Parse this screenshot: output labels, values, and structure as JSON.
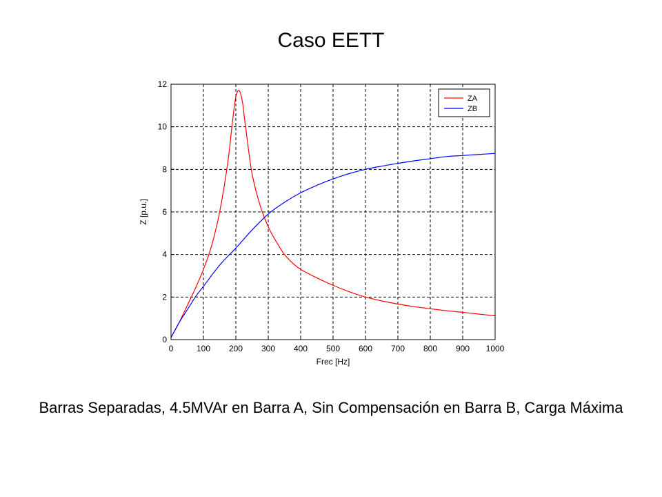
{
  "slide": {
    "title": "Caso EETT",
    "caption": "Barras Separadas, 4.5MVAr en Barra A, Sin Compensación en Barra B, Carga Máxima"
  },
  "chart_data": {
    "type": "line",
    "title": "",
    "xlabel": "Frec [Hz]",
    "ylabel": "Z [p.u.]",
    "xlim": [
      0,
      1000
    ],
    "ylim": [
      0,
      12
    ],
    "xticks": [
      0,
      100,
      200,
      300,
      400,
      500,
      600,
      700,
      800,
      900,
      1000
    ],
    "yticks": [
      0,
      2,
      4,
      6,
      8,
      10,
      12
    ],
    "grid": true,
    "grid_style": "dashed",
    "legend_position": "top-right",
    "series": [
      {
        "name": "ZA",
        "color": "#ff0000",
        "x": [
          0,
          25,
          50,
          75,
          100,
          125,
          150,
          175,
          190,
          200,
          210,
          220,
          230,
          250,
          275,
          300,
          325,
          350,
          375,
          400,
          450,
          500,
          550,
          600,
          650,
          700,
          750,
          800,
          850,
          900,
          950,
          1000
        ],
        "y": [
          0.1,
          0.8,
          1.6,
          2.4,
          3.3,
          4.4,
          6.0,
          8.3,
          10.3,
          11.4,
          11.7,
          11.2,
          10.0,
          7.8,
          6.3,
          5.3,
          4.6,
          4.0,
          3.6,
          3.3,
          2.9,
          2.55,
          2.25,
          2.0,
          1.82,
          1.67,
          1.55,
          1.45,
          1.36,
          1.28,
          1.2,
          1.12
        ]
      },
      {
        "name": "ZB",
        "color": "#0000ff",
        "x": [
          0,
          25,
          50,
          75,
          100,
          150,
          200,
          250,
          300,
          350,
          400,
          450,
          500,
          550,
          600,
          650,
          700,
          750,
          800,
          850,
          900,
          950,
          1000
        ],
        "y": [
          0.1,
          0.8,
          1.4,
          2.0,
          2.5,
          3.5,
          4.3,
          5.15,
          5.9,
          6.45,
          6.9,
          7.25,
          7.55,
          7.8,
          8.0,
          8.15,
          8.28,
          8.4,
          8.5,
          8.6,
          8.65,
          8.7,
          8.75
        ]
      }
    ]
  }
}
